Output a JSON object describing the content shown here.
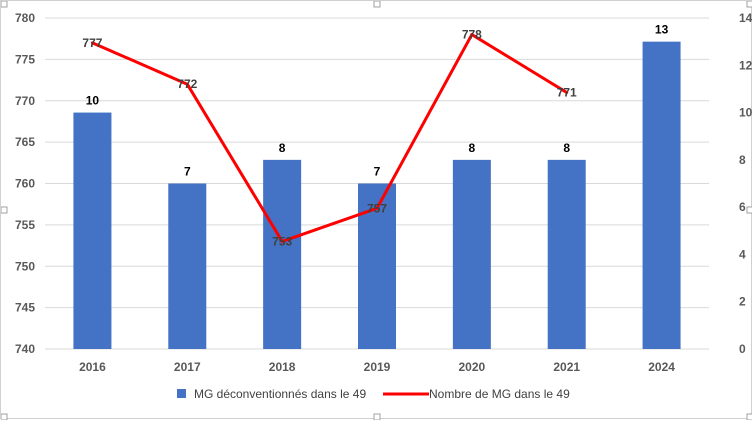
{
  "chart_data": {
    "type": "bar",
    "categories": [
      "2016",
      "2017",
      "2018",
      "2019",
      "2020",
      "2021",
      "2024"
    ],
    "series": [
      {
        "name": "MG déconventionnés dans le 49",
        "type": "bar",
        "axis": "secondary",
        "color": "#4472C4",
        "values": [
          10,
          7,
          8,
          7,
          8,
          8,
          13
        ],
        "labels": [
          "10",
          "7",
          "8",
          "7",
          "8",
          "8",
          "13"
        ]
      },
      {
        "name": "Nombre de MG dans le 49",
        "type": "line",
        "axis": "primary",
        "color": "#FF0000",
        "values": [
          777,
          772,
          753,
          757,
          778,
          771,
          null
        ],
        "labels": [
          "777",
          "772",
          "753",
          "757",
          "778",
          "771",
          ""
        ]
      }
    ],
    "y_primary": {
      "min": 740,
      "max": 780,
      "ticks": [
        "740",
        "745",
        "750",
        "755",
        "760",
        "765",
        "770",
        "775",
        "780"
      ]
    },
    "y_secondary": {
      "min": 0,
      "max": 14,
      "ticks": [
        "0",
        "2",
        "4",
        "6",
        "8",
        "10",
        "12",
        "14"
      ]
    },
    "grid": true,
    "legend_position": "bottom"
  }
}
